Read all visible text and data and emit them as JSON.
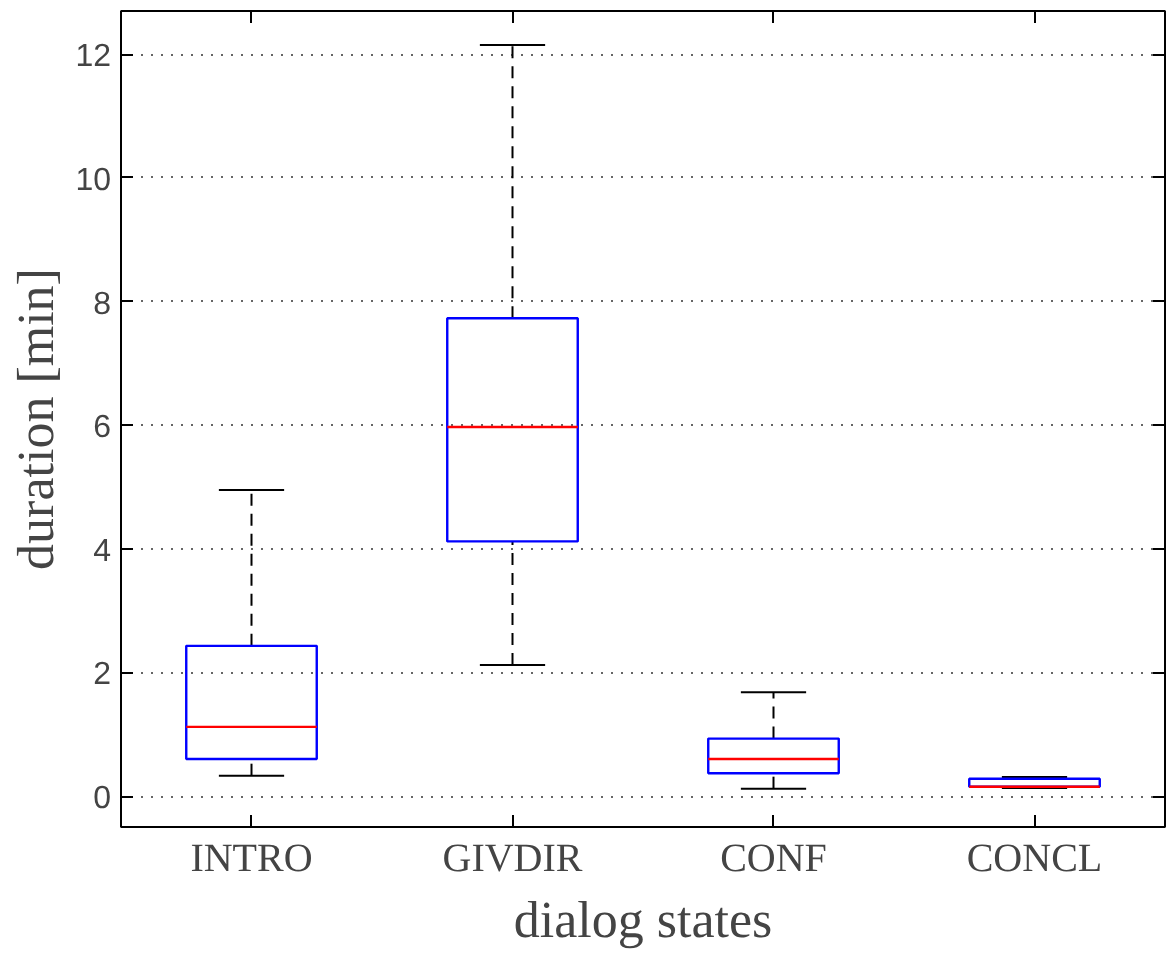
{
  "chart_data": {
    "type": "box",
    "xlabel": "dialog states",
    "ylabel": "duration [min]",
    "categories": [
      "INTRO",
      "GIVDIR",
      "CONF",
      "CONCL"
    ],
    "color": "#0000ff",
    "boxes": [
      {
        "low": 0.33,
        "q1": 0.6,
        "median": 1.12,
        "q3": 2.43,
        "high": 4.95
      },
      {
        "low": 2.12,
        "q1": 4.12,
        "median": 5.97,
        "q3": 7.73,
        "high": 12.15
      },
      {
        "low": 0.12,
        "q1": 0.37,
        "median": 0.6,
        "q3": 0.93,
        "high": 1.68
      },
      {
        "low": 0.13,
        "q1": 0.15,
        "median": 0.15,
        "q3": 0.28,
        "high": 0.31
      }
    ],
    "ylim": [
      -0.5,
      12.7
    ],
    "yticks": [
      0,
      2,
      4,
      6,
      8,
      10,
      12
    ],
    "grid": "y"
  }
}
